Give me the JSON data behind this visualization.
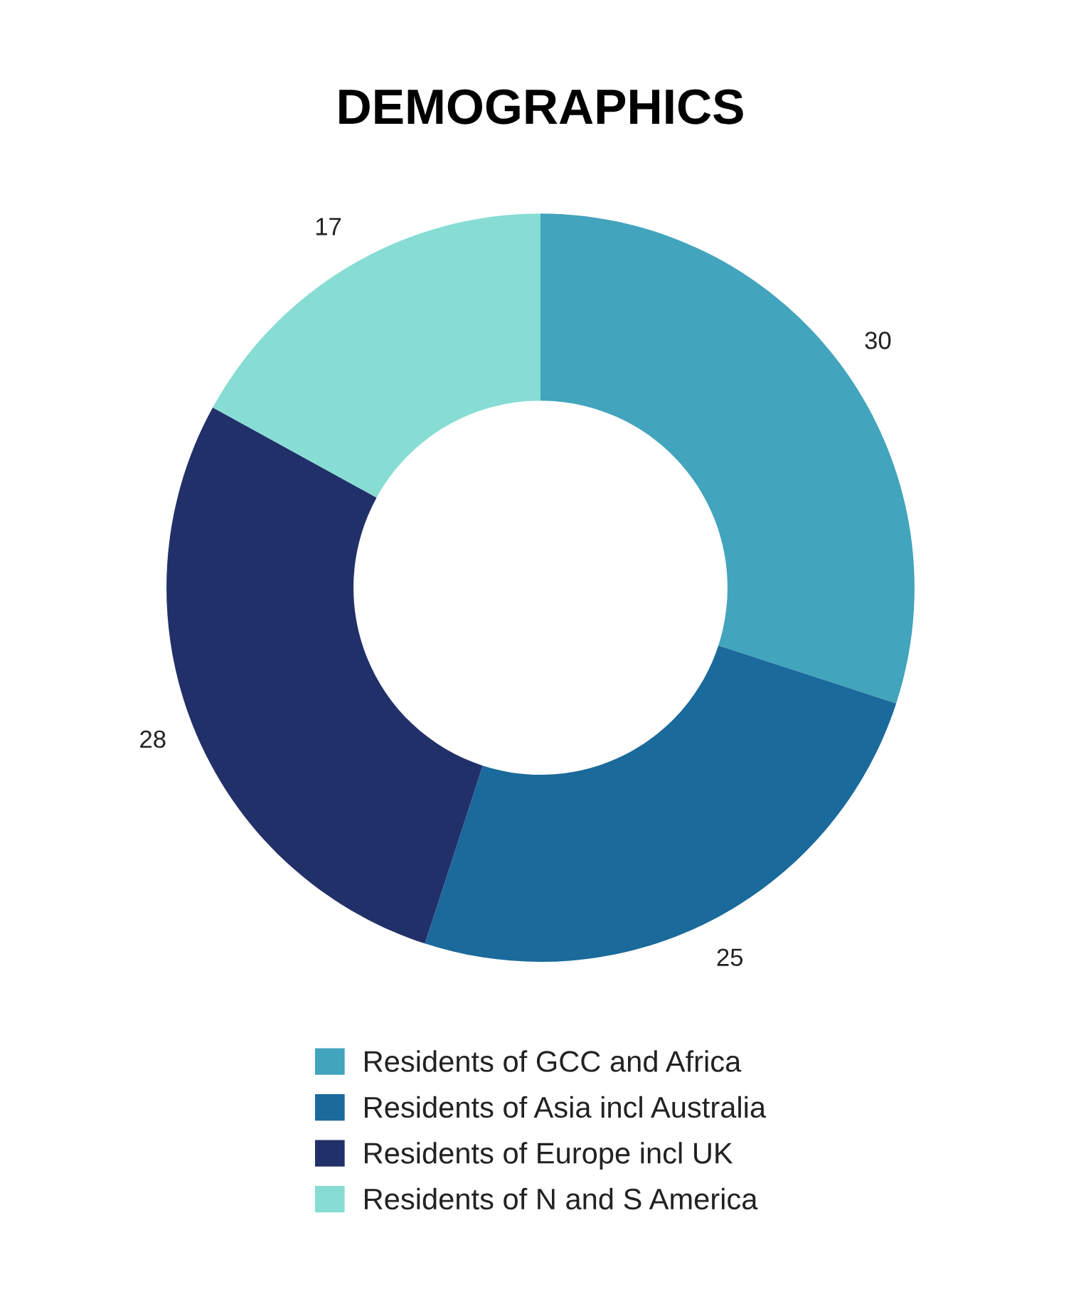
{
  "chart_data": {
    "type": "donut",
    "title": "DEMOGRAPHICS",
    "categories": [
      "Residents of GCC and Africa",
      "Residents of Asia incl Australia",
      "Residents of Europe incl UK",
      "Residents of N and S America"
    ],
    "values": [
      30,
      25,
      28,
      17
    ],
    "colors": [
      "#42a4bd",
      "#1a6a9b",
      "#22306a",
      "#87ddd4"
    ],
    "data_labels": true,
    "legend": "bottom"
  }
}
